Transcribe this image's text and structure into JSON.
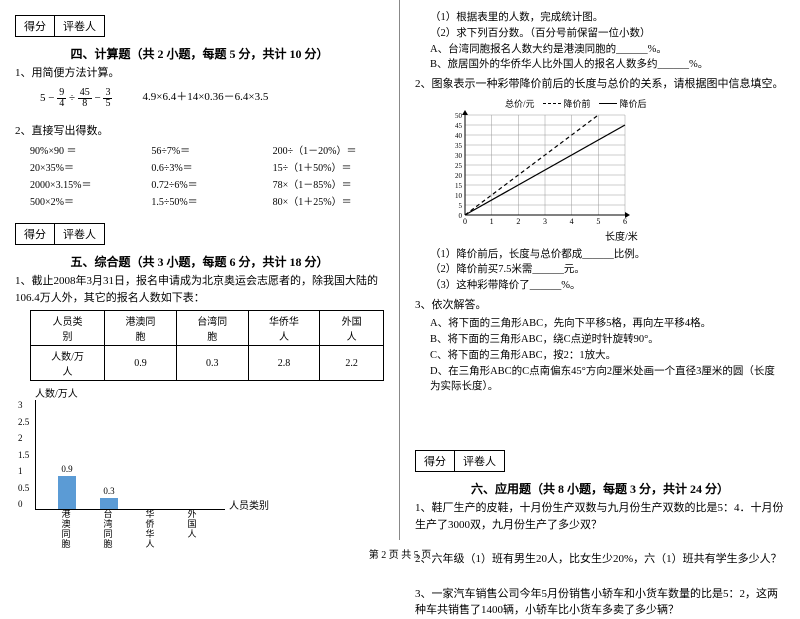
{
  "left": {
    "score": {
      "label1": "得分",
      "label2": "评卷人"
    },
    "sec4": {
      "title": "四、计算题（共 2 小题，每题 5 分，共计 10 分）",
      "q1": "1、用简便方法计算。",
      "eq1a": "5 −",
      "eq1b": "4.9×6.4＋14×0.36－6.4×3.5",
      "frac1": {
        "n": "9",
        "d": "4"
      },
      "frac2": {
        "n": "45",
        "d": "8"
      },
      "frac3": {
        "n": "3",
        "d": "5"
      },
      "q2": "2、直接写出得数。",
      "grid": [
        "90%×90 ＝",
        "56÷7%＝",
        "200÷（1－20%）＝",
        "20×35%＝",
        "0.6÷3%＝",
        "15÷（1＋50%）＝",
        "2000×3.15%＝",
        "0.72÷6%＝",
        "78×（1－85%）＝",
        "500×2%＝",
        "1.5÷50%＝",
        "80×（1＋25%）＝"
      ]
    },
    "sec5": {
      "title": "五、综合题（共 3 小题，每题 6 分，共计 18 分）",
      "q1": "1、截止2008年3月31日，报名申请成为北京奥运会志愿者的，除我国大陆的106.4万人外，其它的报名人数如下表：",
      "table": {
        "headers": [
          "人员类别",
          "港澳同胞",
          "台湾同胞",
          "华侨华人",
          "外国人"
        ],
        "row_label": "人数/万人",
        "values": [
          "0.9",
          "0.3",
          "2.8",
          "2.2"
        ]
      },
      "chart": {
        "ylabel": "人数/万人",
        "xlabel": "人员类别",
        "yticks": [
          "3",
          "2.5",
          "2",
          "1.5",
          "1",
          "0.5",
          "0"
        ],
        "ymax": 3,
        "bars": [
          {
            "label": "港澳同胞",
            "value": 0.9,
            "value_label": "0.9",
            "color": "#5b9bd5"
          },
          {
            "label": "台湾同胞",
            "value": 0.3,
            "value_label": "0.3",
            "color": "#5b9bd5"
          },
          {
            "label": "华侨华人",
            "value": null,
            "value_label": "",
            "color": "#5b9bd5"
          },
          {
            "label": "外国人",
            "value": null,
            "value_label": "",
            "color": "#5b9bd5"
          }
        ]
      }
    }
  },
  "right": {
    "top_items": [
      "（1）根据表里的人数，完成统计图。",
      "（2）求下列百分数。（百分号前保留一位小数）",
      "A、台湾同胞报名人数大约是港澳同胞的______%。",
      "B、旅居国外的华侨华人比外国人的报名人数多约______%。"
    ],
    "q2": "2、图象表示一种彩带降价前后的长度与总价的关系，请根据图中信息填空。",
    "line_chart": {
      "legend1": "降价前",
      "legend2": "降价后",
      "xlabel": "长度/米",
      "ylabel": "总价/元",
      "xticks": [
        "0",
        "1",
        "2",
        "3",
        "4",
        "5",
        "6"
      ],
      "yticks": [
        "50",
        "45",
        "40",
        "35",
        "30",
        "25",
        "20",
        "15",
        "10",
        "5",
        "0"
      ],
      "xmax": 6,
      "ymax": 50,
      "series": [
        {
          "style": "dash",
          "points": [
            [
              0,
              0
            ],
            [
              5,
              50
            ]
          ]
        },
        {
          "style": "solid",
          "points": [
            [
              0,
              0
            ],
            [
              6,
              45
            ]
          ]
        }
      ],
      "grid_color": "#999"
    },
    "sub2": [
      "（1）降价前后，长度与总价都成______比例。",
      "（2）降价前买7.5米需______元。",
      "（3）这种彩带降价了______%。"
    ],
    "q3": "3、依次解答。",
    "q3_items": [
      "A、将下面的三角形ABC，先向下平移5格，再向左平移4格。",
      "B、将下面的三角形ABC，绕C点逆时针旋转90°。",
      "C、将下面的三角形ABC，按2：1放大。",
      "D、在三角形ABC的C点南偏东45°方向2厘米处画一个直径3厘米的圆（长度为实际长度）。"
    ],
    "score": {
      "label1": "得分",
      "label2": "评卷人"
    },
    "sec6": {
      "title": "六、应用题（共 8 小题，每题 3 分，共计 24 分）",
      "q1": "1、鞋厂生产的皮鞋，十月份生产双数与九月份生产双数的比是5：4．十月份生产了3000双，九月份生产了多少双？",
      "q2": "2、六年级（1）班有男生20人，比女生少20%，六（1）班共有学生多少人？",
      "q3": "3、一家汽车销售公司今年5月份销售小轿车和小货车数量的比是5：2，这两种车共销售了1400辆，小轿车比小货车多卖了多少辆？"
    }
  },
  "footer": "第 2 页 共 5 页"
}
